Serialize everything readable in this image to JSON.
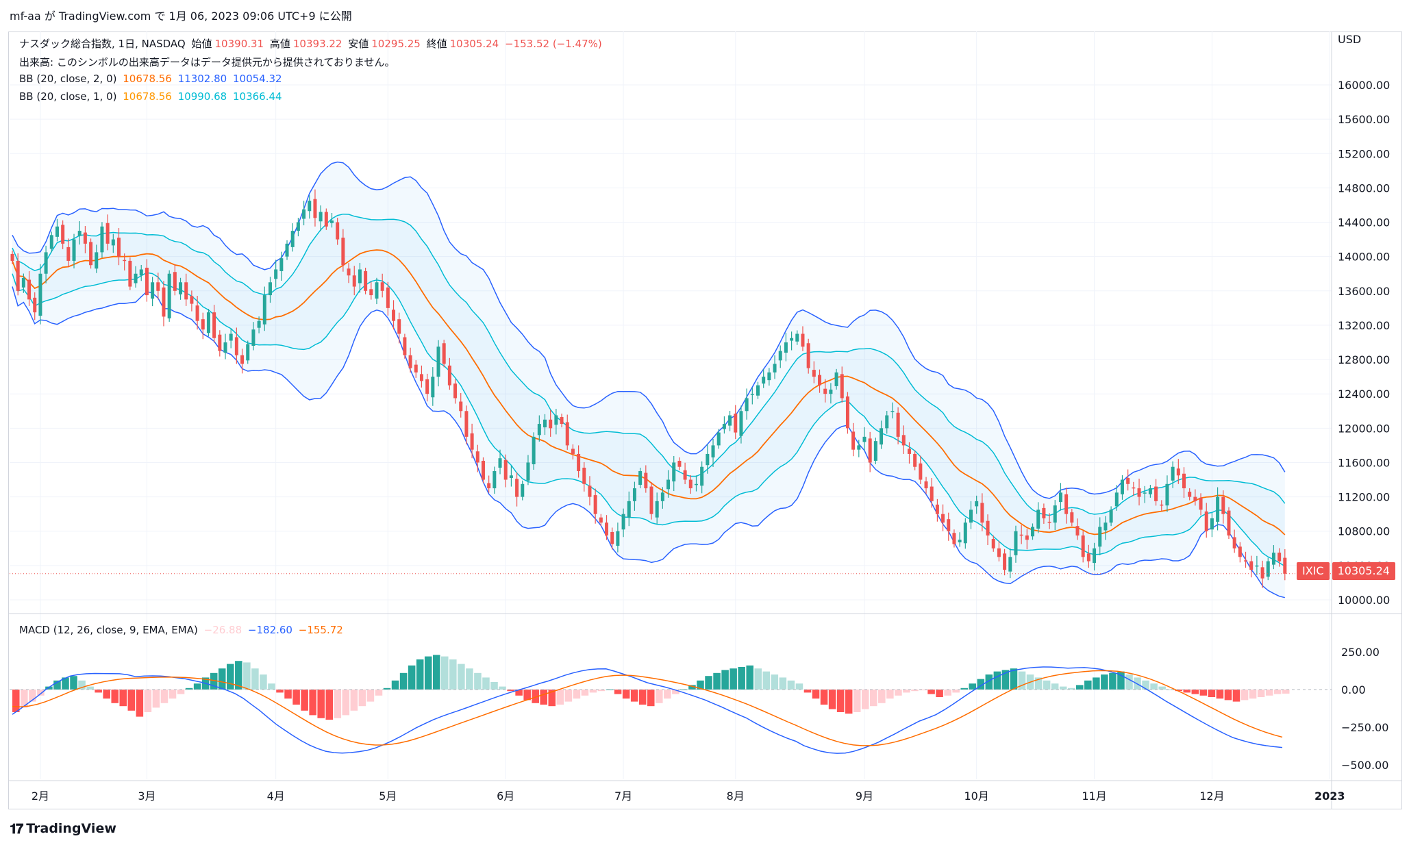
{
  "header": {
    "publish_line": "mf-aa が TradingView.com で 1月 06, 2023 09:06 UTC+9 に公開"
  },
  "legend": {
    "symbol_line": "ナスダック総合指数, 1日, NASDAQ",
    "open_label": "始値",
    "open": "10390.31",
    "high_label": "高値",
    "high": "10393.22",
    "low_label": "安値",
    "low": "10295.25",
    "close_label": "終値",
    "close": "10305.24",
    "change": "−153.52 (−1.47%)",
    "volume_note": "出来高: このシンボルの出来高データはデータ提供元から提供されておりません。",
    "bb1_name": "BB (20, close, 2, 0)",
    "bb1_basis": "10678.56",
    "bb1_upper": "11302.80",
    "bb1_lower": "10054.32",
    "bb2_name": "BB (20, close, 1, 0)",
    "bb2_basis": "10678.56",
    "bb2_upper": "10990.68",
    "bb2_lower": "10366.44",
    "macd_name": "MACD (12, 26, close, 9, EMA, EMA)",
    "macd_hist": "−26.88",
    "macd_line": "−182.60",
    "macd_signal": "−155.72"
  },
  "axis": {
    "currency": "USD",
    "price_ticks": [
      "16000.00",
      "15600.00",
      "15200.00",
      "14800.00",
      "14400.00",
      "14000.00",
      "13600.00",
      "13200.00",
      "12800.00",
      "12400.00",
      "12000.00",
      "11600.00",
      "11200.00",
      "10800.00",
      "10400.00",
      "10000.00"
    ],
    "macd_ticks": [
      "250.00",
      "0.00",
      "−250.00",
      "−500.00"
    ],
    "months": [
      "2月",
      "3月",
      "4月",
      "5月",
      "6月",
      "7月",
      "8月",
      "9月",
      "10月",
      "11月",
      "12月",
      "2023"
    ]
  },
  "price_tag": {
    "symbol": "IXIC",
    "value": "10305.24"
  },
  "footer": {
    "brand": "TradingView"
  },
  "colors": {
    "up": "#26a69a",
    "down": "#ef5350",
    "bb1": "#2962ff",
    "bb2": "#00bcd4",
    "basis": "#ff6d00",
    "basis2": "#ff9800",
    "macd": "#2962ff",
    "signal": "#ff6d00"
  },
  "chart_data": {
    "type": "candlestick",
    "period": "1日",
    "price_range": [
      9900,
      16200
    ],
    "macd_range": [
      -600,
      380
    ],
    "months_index": [
      5,
      24,
      47,
      67,
      88,
      109,
      129,
      152,
      172,
      193,
      214,
      235
    ],
    "closes": [
      13950,
      13600,
      13750,
      13500,
      13350,
      13800,
      14050,
      14250,
      14350,
      14150,
      13950,
      14200,
      14300,
      14150,
      13900,
      14050,
      14350,
      14150,
      14200,
      14000,
      13950,
      13650,
      13800,
      13850,
      13550,
      13700,
      13600,
      13300,
      13800,
      13600,
      13700,
      13500,
      13450,
      13250,
      13150,
      13350,
      13050,
      12900,
      13000,
      13100,
      12850,
      12750,
      12980,
      13150,
      13250,
      13550,
      13700,
      13850,
      13980,
      14150,
      14300,
      14400,
      14550,
      14650,
      14450,
      14520,
      14350,
      14420,
      14200,
      13900,
      13780,
      13650,
      13850,
      13600,
      13550,
      13700,
      13600,
      13400,
      13250,
      13100,
      12850,
      12700,
      12650,
      12550,
      12400,
      12600,
      12950,
      12750,
      12500,
      12350,
      12200,
      11900,
      11750,
      11600,
      11400,
      11300,
      11500,
      11650,
      11400,
      11450,
      11200,
      11350,
      11600,
      11900,
      12050,
      12100,
      12000,
      12150,
      12050,
      11800,
      11700,
      11500,
      11350,
      11200,
      11000,
      10900,
      10750,
      10650,
      10800,
      11000,
      11150,
      11300,
      11500,
      11300,
      11000,
      11150,
      11250,
      11400,
      11600,
      11550,
      11400,
      11300,
      11350,
      11550,
      11700,
      11800,
      11950,
      12050,
      12150,
      11950,
      12200,
      12350,
      12400,
      12500,
      12600,
      12650,
      12750,
      12900,
      13000,
      13050,
      13100,
      12950,
      12700,
      12600,
      12500,
      12400,
      12450,
      12650,
      12350,
      12000,
      11750,
      11800,
      11900,
      11600,
      11850,
      12000,
      12150,
      12200,
      11900,
      11800,
      11700,
      11550,
      11400,
      11300,
      11150,
      11000,
      10900,
      10800,
      10650,
      10700,
      10900,
      11050,
      11150,
      10900,
      10750,
      10600,
      10500,
      10350,
      10500,
      10800,
      10750,
      10700,
      10850,
      11050,
      10950,
      10900,
      11100,
      11250,
      11000,
      10900,
      10750,
      10500,
      10450,
      10600,
      10850,
      10900,
      11050,
      11250,
      11400,
      11350,
      11300,
      11200,
      11250,
      11300,
      11150,
      11100,
      11350,
      11550,
      11450,
      11300,
      11200,
      11150,
      11050,
      10800,
      10950,
      11200,
      11000,
      10750,
      10600,
      10500,
      10450,
      10350,
      10400,
      10250,
      10450,
      10550,
      10450,
      10305
    ],
    "macd_hist_sample": [
      -150,
      -120,
      -80,
      -40,
      20,
      60,
      80,
      90,
      60,
      20,
      -20,
      -60,
      -90,
      -110,
      -140,
      -180,
      -150,
      -120,
      -90,
      -60,
      -30,
      10,
      40,
      80,
      110,
      140,
      170,
      190,
      180,
      140,
      100,
      40,
      -20,
      -60,
      -100,
      -140,
      -170,
      -190,
      -200,
      -190,
      -170,
      -140,
      -110,
      -80,
      -40,
      10,
      60,
      110,
      160,
      200,
      220,
      230,
      220,
      200,
      170,
      140,
      110,
      80,
      50,
      20,
      -10,
      -40,
      -70,
      -90,
      -100,
      -110,
      -100,
      -80,
      -60,
      -40,
      -20,
      -10,
      0,
      -30,
      -60,
      -80,
      -100,
      -110,
      -90,
      -60,
      -30,
      0,
      30,
      60,
      90,
      110,
      130,
      140,
      150,
      160,
      140,
      120,
      100,
      80,
      60,
      40,
      -20,
      -60,
      -100,
      -130,
      -150,
      -160,
      -150,
      -130,
      -110,
      -90,
      -60,
      -40,
      -20,
      -10,
      -5,
      -30,
      -50,
      -40,
      -20,
      10,
      40,
      70,
      100,
      120,
      130,
      140,
      120,
      100,
      80,
      60,
      40,
      20,
      10,
      30,
      60,
      80,
      100,
      110,
      120,
      100,
      80,
      60,
      40,
      20,
      0,
      -10,
      -20,
      -30,
      -40,
      -50,
      -60,
      -70,
      -80,
      -70,
      -60,
      -50,
      -40,
      -30,
      -27
    ]
  }
}
